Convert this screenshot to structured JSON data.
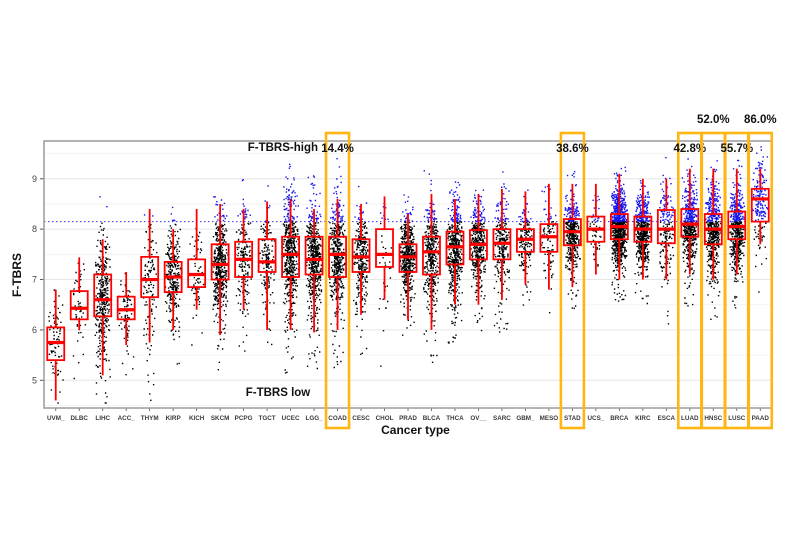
{
  "chart_data": {
    "type": "box",
    "subtype": "boxplot-with-jittered-points",
    "title": "",
    "xlabel": "Cancer type",
    "ylabel": "F-TBRS",
    "ylim": [
      4.45,
      9.75
    ],
    "yticks": [
      5,
      6,
      7,
      8,
      9
    ],
    "grid": true,
    "threshold": {
      "value": 8.15,
      "style": "dotted",
      "color": "#3333EE"
    },
    "region_labels": {
      "high": "F-TBRS-high",
      "low": "F-TBRS low"
    },
    "colors": {
      "box": "#FF0000",
      "point_low": "#000000",
      "point_high": "#1515EE",
      "highlight": "#FFB612",
      "border": "#9A9A9A",
      "grid_major": "#E6E6E6",
      "grid_minor": "#F3F3F3"
    },
    "categories": [
      {
        "name": "UVM_",
        "median": 5.75,
        "q1": 5.4,
        "q3": 6.05,
        "lo": 4.6,
        "hi": 6.8,
        "n": 80,
        "highlight": false,
        "pct": null,
        "pct_row": null
      },
      {
        "name": "DLBC",
        "median": 6.43,
        "q1": 6.21,
        "q3": 6.77,
        "lo": 6.0,
        "hi": 7.44,
        "n": 48,
        "highlight": false,
        "pct": null,
        "pct_row": null
      },
      {
        "name": "LIHC",
        "median": 6.6,
        "q1": 6.27,
        "q3": 7.1,
        "lo": 5.1,
        "hi": 7.8,
        "n": 370,
        "highlight": false,
        "pct": null,
        "pct_row": null
      },
      {
        "name": "ACC_",
        "median": 6.4,
        "q1": 6.21,
        "q3": 6.66,
        "lo": 5.7,
        "hi": 7.15,
        "n": 79,
        "highlight": false,
        "pct": null,
        "pct_row": null
      },
      {
        "name": "THYM",
        "median": 7.0,
        "q1": 6.65,
        "q3": 7.45,
        "lo": 5.75,
        "hi": 8.4,
        "n": 120,
        "highlight": false,
        "pct": null,
        "pct_row": null
      },
      {
        "name": "KIRP",
        "median": 7.05,
        "q1": 6.75,
        "q3": 7.35,
        "lo": 6.0,
        "hi": 8.0,
        "n": 289,
        "highlight": false,
        "pct": null,
        "pct_row": null
      },
      {
        "name": "KICH",
        "median": 7.1,
        "q1": 6.85,
        "q3": 7.4,
        "lo": 6.4,
        "hi": 8.4,
        "n": 65,
        "highlight": false,
        "pct": null,
        "pct_row": null
      },
      {
        "name": "SKCM",
        "median": 7.3,
        "q1": 7.0,
        "q3": 7.7,
        "lo": 5.9,
        "hi": 8.5,
        "n": 460,
        "highlight": false,
        "pct": null,
        "pct_row": null
      },
      {
        "name": "PCPG",
        "median": 7.4,
        "q1": 7.05,
        "q3": 7.75,
        "lo": 6.4,
        "hi": 8.4,
        "n": 180,
        "highlight": false,
        "pct": null,
        "pct_row": null
      },
      {
        "name": "TGCT",
        "median": 7.35,
        "q1": 7.15,
        "q3": 7.8,
        "lo": 6.0,
        "hi": 8.55,
        "n": 150,
        "highlight": false,
        "pct": null,
        "pct_row": null
      },
      {
        "name": "UCEC",
        "median": 7.5,
        "q1": 7.05,
        "q3": 7.85,
        "lo": 6.0,
        "hi": 8.6,
        "n": 530,
        "highlight": false,
        "pct": null,
        "pct_row": null
      },
      {
        "name": "LGG_",
        "median": 7.4,
        "q1": 7.1,
        "q3": 7.85,
        "lo": 5.95,
        "hi": 8.4,
        "n": 510,
        "highlight": false,
        "pct": null,
        "pct_row": null
      },
      {
        "name": "COAD",
        "median": 7.5,
        "q1": 7.05,
        "q3": 7.85,
        "lo": 6.0,
        "hi": 8.6,
        "n": 450,
        "highlight": true,
        "pct": "14.4%",
        "pct_row": "inner"
      },
      {
        "name": "CESC",
        "median": 7.45,
        "q1": 7.15,
        "q3": 7.8,
        "lo": 6.3,
        "hi": 8.5,
        "n": 300,
        "highlight": false,
        "pct": null,
        "pct_row": null
      },
      {
        "name": "CHOL",
        "median": 7.5,
        "q1": 7.25,
        "q3": 8.0,
        "lo": 6.6,
        "hi": 8.65,
        "n": 36,
        "highlight": false,
        "pct": null,
        "pct_row": null
      },
      {
        "name": "PRAD",
        "median": 7.45,
        "q1": 7.15,
        "q3": 7.7,
        "lo": 6.2,
        "hi": 8.3,
        "n": 495,
        "highlight": false,
        "pct": null,
        "pct_row": null
      },
      {
        "name": "BLCA",
        "median": 7.55,
        "q1": 7.1,
        "q3": 7.85,
        "lo": 6.0,
        "hi": 8.7,
        "n": 408,
        "highlight": false,
        "pct": null,
        "pct_row": null
      },
      {
        "name": "THCA",
        "median": 7.65,
        "q1": 7.3,
        "q3": 7.95,
        "lo": 6.5,
        "hi": 8.6,
        "n": 505,
        "highlight": false,
        "pct": null,
        "pct_row": null
      },
      {
        "name": "OV__",
        "median": 7.7,
        "q1": 7.4,
        "q3": 7.98,
        "lo": 6.5,
        "hi": 8.7,
        "n": 420,
        "highlight": false,
        "pct": null,
        "pct_row": null
      },
      {
        "name": "SARC",
        "median": 7.72,
        "q1": 7.4,
        "q3": 8.0,
        "lo": 6.6,
        "hi": 8.8,
        "n": 260,
        "highlight": false,
        "pct": null,
        "pct_row": null
      },
      {
        "name": "GBM_",
        "median": 7.8,
        "q1": 7.55,
        "q3": 8.0,
        "lo": 6.9,
        "hi": 8.75,
        "n": 160,
        "highlight": false,
        "pct": null,
        "pct_row": null
      },
      {
        "name": "MESO",
        "median": 7.85,
        "q1": 7.55,
        "q3": 8.1,
        "lo": 6.8,
        "hi": 8.9,
        "n": 87,
        "highlight": false,
        "pct": null,
        "pct_row": null
      },
      {
        "name": "STAD",
        "median": 7.95,
        "q1": 7.68,
        "q3": 8.2,
        "lo": 6.85,
        "hi": 8.9,
        "n": 415,
        "highlight": true,
        "pct": "38.6%",
        "pct_row": "inner"
      },
      {
        "name": "UCS_",
        "median": 8.0,
        "q1": 7.75,
        "q3": 8.25,
        "lo": 7.1,
        "hi": 8.9,
        "n": 57,
        "highlight": false,
        "pct": null,
        "pct_row": null
      },
      {
        "name": "BRCA",
        "median": 8.05,
        "q1": 7.8,
        "q3": 8.3,
        "lo": 7.0,
        "hi": 9.1,
        "n": 950,
        "highlight": false,
        "pct": null,
        "pct_row": null
      },
      {
        "name": "KIRC",
        "median": 8.0,
        "q1": 7.75,
        "q3": 8.25,
        "lo": 7.0,
        "hi": 9.0,
        "n": 530,
        "highlight": false,
        "pct": null,
        "pct_row": null
      },
      {
        "name": "ESCA",
        "median": 8.0,
        "q1": 7.72,
        "q3": 8.38,
        "lo": 7.0,
        "hi": 9.0,
        "n": 185,
        "highlight": false,
        "pct": null,
        "pct_row": null
      },
      {
        "name": "LUAD",
        "median": 8.1,
        "q1": 7.85,
        "q3": 8.4,
        "lo": 7.1,
        "hi": 9.2,
        "n": 515,
        "highlight": true,
        "pct": "42.8%",
        "pct_row": "inner"
      },
      {
        "name": "HNSC",
        "median": 8.0,
        "q1": 7.7,
        "q3": 8.3,
        "lo": 7.0,
        "hi": 9.2,
        "n": 520,
        "highlight": true,
        "pct": "52.0%",
        "pct_row": "outer"
      },
      {
        "name": "LUSC",
        "median": 8.05,
        "q1": 7.8,
        "q3": 8.35,
        "lo": 7.1,
        "hi": 9.2,
        "n": 500,
        "highlight": true,
        "pct": "55.7%",
        "pct_row": "inner"
      },
      {
        "name": "PAAD",
        "median": 8.6,
        "q1": 8.15,
        "q3": 8.8,
        "lo": 7.7,
        "hi": 9.2,
        "n": 180,
        "highlight": true,
        "pct": "86.0%",
        "pct_row": "outer"
      }
    ]
  }
}
